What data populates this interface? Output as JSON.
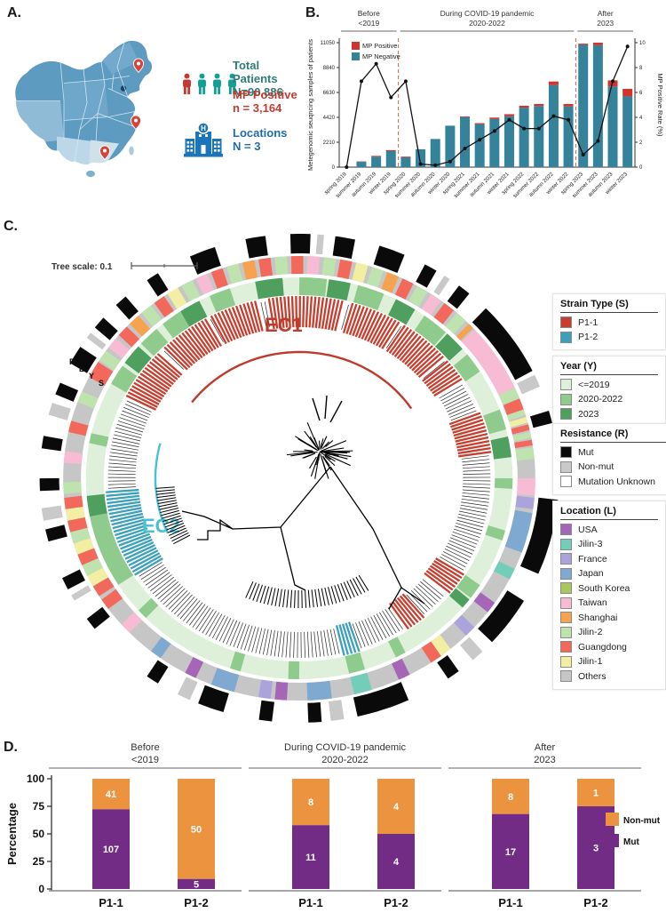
{
  "panels": {
    "a_label": "A.",
    "b_label": "B.",
    "c_label": "C.",
    "d_label": "D."
  },
  "panel_a": {
    "stats": [
      {
        "label": "Total Patients",
        "value": "N=90,886",
        "color": "#2E7D78"
      },
      {
        "label": "MP Positive",
        "value": "n = 3,164",
        "color": "#C13B30"
      },
      {
        "label": "Locations",
        "value": "N = 3",
        "color": "#1F6CA8"
      }
    ],
    "people_icon_colors": [
      "#C13B30",
      "#149E95",
      "#149E95",
      "#149E95"
    ],
    "pin_color": "#D6453A",
    "hospital_color": "#1B75BB"
  },
  "chart_data": [
    {
      "id": "panel_b",
      "type": "bar+line",
      "x": [
        "spring 2019",
        "summer 2019",
        "autumn 2019",
        "winter 2019",
        "spring 2020",
        "summer 2020",
        "autumn 2020",
        "winter 2020",
        "spring 2021",
        "summer 2021",
        "autumn 2021",
        "winter 2021",
        "spring 2022",
        "summer 2022",
        "autumn 2022",
        "winter 2022",
        "spring 2023",
        "summer 2023",
        "autumn 2023",
        "winter 2023"
      ],
      "series": [
        {
          "name": "MP Positive",
          "color": "#D1342F",
          "values": [
            0,
            35,
            80,
            85,
            65,
            4,
            4,
            17,
            68,
            86,
            128,
            179,
            169,
            174,
            312,
            213,
            110,
            230,
            530,
            670
          ]
        },
        {
          "name": "MP Negative",
          "color": "#35839A",
          "values": [
            0,
            470,
            920,
            1420,
            870,
            1590,
            2500,
            3680,
            4430,
            3820,
            4270,
            4520,
            5280,
            5430,
            7290,
            5390,
            10850,
            10820,
            7170,
            6280
          ]
        }
      ],
      "line": {
        "name": "MP Positive Rate (%)",
        "color": "#111111",
        "values": [
          0,
          6.9,
          8.3,
          5.6,
          6.9,
          0.25,
          0.15,
          0.45,
          1.5,
          2.2,
          2.9,
          3.8,
          3.1,
          3.1,
          4.1,
          3.8,
          1.0,
          2.1,
          6.9,
          9.7
        ]
      },
      "ylabel_left": "Metegenomic seuqncing samples of patients",
      "ylabel_right": "MP Positive Rate (%)",
      "yticks_left": [
        0,
        2210,
        4420,
        6630,
        8840,
        11050
      ],
      "yticks_right": [
        0,
        2,
        4,
        6,
        8,
        10
      ],
      "ylim_left": [
        0,
        11050
      ],
      "ylim_right": [
        0,
        10
      ],
      "sections": [
        {
          "line1": "Before",
          "line2": "<2019",
          "from": 0,
          "to": 3
        },
        {
          "line1": "During COVID-19 pandemic",
          "line2": "2020-2022",
          "from": 4,
          "to": 15
        },
        {
          "line1": "After",
          "line2": "2023",
          "from": 16,
          "to": 19
        }
      ],
      "separator_color": "#E0584D"
    },
    {
      "id": "panel_d",
      "type": "stacked-bar",
      "ylabel": "Percentage",
      "yticks": [
        0,
        25,
        50,
        75,
        100
      ],
      "legend": [
        {
          "label": "Non-mut",
          "color": "#EC9340"
        },
        {
          "label": "Mut",
          "color": "#732C85"
        }
      ],
      "groups": [
        {
          "line1": "Before",
          "line2": "<2019",
          "bars": [
            {
              "x": "P1-1",
              "mut": 107,
              "nonmut": 41
            },
            {
              "x": "P1-2",
              "mut": 5,
              "nonmut": 50
            }
          ]
        },
        {
          "line1": "During COVID-19 pandemic",
          "line2": "2020-2022",
          "bars": [
            {
              "x": "P1-1",
              "mut": 11,
              "nonmut": 8
            },
            {
              "x": "P1-2",
              "mut": 4,
              "nonmut": 4
            }
          ]
        },
        {
          "line1": "After",
          "line2": "2023",
          "bars": [
            {
              "x": "P1-1",
              "mut": 17,
              "nonmut": 8
            },
            {
              "x": "P1-2",
              "mut": 3,
              "nonmut": 1
            }
          ]
        }
      ]
    }
  ],
  "phylo": {
    "tree_scale_label": "Tree scale: 0.1",
    "ring_labels": [
      "R",
      "L",
      "Y",
      "S"
    ],
    "clades": [
      {
        "text": "EC1",
        "color": "#C0392B"
      },
      {
        "text": "EC2",
        "color": "#4BBFD6"
      }
    ],
    "palette": {
      "P1-1": "#C73E2E",
      "P1-2": "#3BA0BC",
      "<=2019": "#DFF0DA",
      "2020-2022": "#8FCB8D",
      "2023": "#4F9F5E",
      "Mut": "#0A0A0A",
      "Non-mut": "#C9C9C9",
      "Mutation Unknown": "#FFFFFF",
      "USA": "#A566B8",
      "Jilin-3": "#72CDB9",
      "France": "#ABA3DB",
      "Japan": "#7FA9D1",
      "South Korea": "#A9C85B",
      "Taiwan": "#F7BCD4",
      "Shanghai": "#F6A24E",
      "Jilin-2": "#BFE3AE",
      "Guangdong": "#F2695C",
      "Jilin-1": "#F2EFA2",
      "Others": "#C6C6C6"
    },
    "legends": [
      {
        "title": "Strain Type (S)",
        "items": [
          "P1-1",
          "P1-2"
        ]
      },
      {
        "title": "Year (Y)",
        "items": [
          "<=2019",
          "2020-2022",
          "2023"
        ]
      },
      {
        "title": "Resistance (R)",
        "items": [
          "Mut",
          "Non-mut",
          "Mutation Unknown"
        ]
      },
      {
        "title": "Location (L)",
        "items": [
          "USA",
          "Jilin-3",
          "France",
          "Japan",
          "South Korea",
          "Taiwan",
          "Shanghai",
          "Jilin-2",
          "Guangdong",
          "Jilin-1",
          "Others"
        ]
      }
    ],
    "rings": {
      "strain_blocks": [
        [
          -63,
          -46,
          "P1-1"
        ],
        [
          -44,
          -29,
          "P1-1"
        ],
        [
          -27,
          -13,
          "P1-1"
        ],
        [
          -9,
          14,
          "P1-1"
        ],
        [
          16,
          31,
          "P1-1"
        ],
        [
          33,
          48,
          "P1-1"
        ],
        [
          50,
          58,
          "P1-1"
        ],
        [
          69,
          82,
          "P1-1"
        ],
        [
          122,
          130,
          "P1-1"
        ],
        [
          140,
          146,
          "P1-1"
        ],
        [
          162,
          167,
          "P1-2"
        ],
        [
          238,
          266,
          "P1-2"
        ]
      ],
      "year_base": "<=2019",
      "year_overlays": [
        [
          -62,
          -55,
          "2020-2022"
        ],
        [
          -55,
          -48,
          "2023"
        ],
        [
          -48,
          -42,
          "2020-2022"
        ],
        [
          -40,
          -34,
          "2020-2022"
        ],
        [
          -34,
          -27,
          "2023"
        ],
        [
          -25,
          -18,
          "2020-2022"
        ],
        [
          -12,
          -4,
          "2023"
        ],
        [
          0,
          8,
          "2020-2022"
        ],
        [
          8,
          14,
          "2023"
        ],
        [
          16,
          24,
          "2020-2022"
        ],
        [
          27,
          33,
          "2023"
        ],
        [
          36,
          44,
          "2020-2022"
        ],
        [
          44,
          50,
          "2023"
        ],
        [
          52,
          58,
          "2020-2022"
        ],
        [
          70,
          76,
          "2020-2022"
        ],
        [
          78,
          84,
          "2023"
        ],
        [
          90,
          94,
          "2020-2022"
        ],
        [
          105,
          109,
          "2020-2022"
        ],
        [
          122,
          127,
          "2020-2022"
        ],
        [
          127,
          131,
          "2023"
        ],
        [
          150,
          154,
          "2020-2022"
        ],
        [
          162,
          167,
          "2020-2022"
        ],
        [
          180,
          184,
          "2020-2022"
        ],
        [
          196,
          200,
          "2020-2022"
        ],
        [
          226,
          230,
          "2020-2022"
        ],
        [
          238,
          259,
          "2020-2022"
        ],
        [
          259,
          266,
          "2023"
        ],
        [
          280,
          284,
          "2020-2022"
        ]
      ],
      "location_base": "Others",
      "location_overlays": [
        [
          -63,
          -58,
          "Guangdong"
        ],
        [
          -58,
          -54,
          "Jilin-2"
        ],
        [
          -54,
          -50,
          "Taiwan"
        ],
        [
          -50,
          -46,
          "Guangdong"
        ],
        [
          -46,
          -42,
          "Shanghai"
        ],
        [
          -42,
          -38,
          "Jilin-2"
        ],
        [
          -38,
          -34,
          "Guangdong"
        ],
        [
          -34,
          -30,
          "Jilin-1"
        ],
        [
          -30,
          -26,
          "Jilin-2"
        ],
        [
          -26,
          -22,
          "Taiwan"
        ],
        [
          -22,
          -18,
          "Guangdong"
        ],
        [
          -18,
          -14,
          "Jilin-2"
        ],
        [
          -14,
          -10,
          "Shanghai"
        ],
        [
          -10,
          -6,
          "Guangdong"
        ],
        [
          -6,
          -2,
          "Jilin-2"
        ],
        [
          -2,
          2,
          "Guangdong"
        ],
        [
          2,
          6,
          "Taiwan"
        ],
        [
          6,
          10,
          "Jilin-2"
        ],
        [
          10,
          14,
          "Guangdong"
        ],
        [
          14,
          18,
          "Jilin-1"
        ],
        [
          18,
          22,
          "Jilin-2"
        ],
        [
          22,
          26,
          "Shanghai"
        ],
        [
          26,
          30,
          "Guangdong"
        ],
        [
          30,
          34,
          "Jilin-2"
        ],
        [
          34,
          38,
          "Taiwan"
        ],
        [
          38,
          42,
          "Guangdong"
        ],
        [
          42,
          46,
          "Jilin-2"
        ],
        [
          46,
          48,
          "Shanghai"
        ],
        [
          48,
          66,
          "Taiwan"
        ],
        [
          66,
          69,
          "Jilin-2"
        ],
        [
          69,
          72,
          "Guangdong"
        ],
        [
          72,
          74,
          "Jilin-2"
        ],
        [
          74,
          76,
          "Jilin-1"
        ],
        [
          76,
          78,
          "Guangdong"
        ],
        [
          78,
          80,
          "Jilin-2"
        ],
        [
          80,
          82,
          "Guangdong"
        ],
        [
          82,
          86,
          "Jilin-2"
        ],
        [
          90,
          95,
          "Taiwan"
        ],
        [
          95,
          99,
          "France"
        ],
        [
          99,
          110,
          "Japan"
        ],
        [
          114,
          118,
          "Jilin-3"
        ],
        [
          124,
          128,
          "USA"
        ],
        [
          132,
          136,
          "France"
        ],
        [
          140,
          143,
          "Jilin-1"
        ],
        [
          143,
          146,
          "Guangdong"
        ],
        [
          152,
          156,
          "USA"
        ],
        [
          162,
          167,
          "Jilin-3"
        ],
        [
          172,
          178,
          "Japan"
        ],
        [
          183,
          187,
          "USA"
        ],
        [
          187,
          191,
          "France"
        ],
        [
          196,
          202,
          "Japan"
        ],
        [
          206,
          210,
          "USA"
        ],
        [
          216,
          220,
          "Japan"
        ],
        [
          226,
          230,
          "Taiwan"
        ],
        [
          234,
          238,
          "Guangdong"
        ],
        [
          238,
          241,
          "Guangdong"
        ],
        [
          241,
          244,
          "Jilin-1"
        ],
        [
          244,
          247,
          "Jilin-2"
        ],
        [
          247,
          250,
          "Guangdong"
        ],
        [
          250,
          253,
          "Jilin-1"
        ],
        [
          253,
          256,
          "Jilin-2"
        ],
        [
          256,
          259,
          "Guangdong"
        ],
        [
          259,
          262,
          "Jilin-1"
        ],
        [
          262,
          266,
          "Guangdong"
        ],
        [
          266,
          270,
          "Jilin-2"
        ],
        [
          274,
          278,
          "Taiwan"
        ],
        [
          282,
          286,
          "Guangdong"
        ],
        [
          290,
          294,
          "Jilin-2"
        ]
      ],
      "resistance_overlays": [
        [
          -62,
          -57,
          "Mut"
        ],
        [
          -55,
          -53,
          "Non-mut"
        ],
        [
          -52,
          -49,
          "Mut"
        ],
        [
          -45,
          -42,
          "Mut"
        ],
        [
          -36,
          -32,
          "Mut"
        ],
        [
          -25,
          -19,
          "Mut"
        ],
        [
          -12,
          -7,
          "Mut"
        ],
        [
          -2,
          3,
          "Mut"
        ],
        [
          4,
          6,
          "Non-mut"
        ],
        [
          8,
          13,
          "Mut"
        ],
        [
          18,
          24,
          "Mut"
        ],
        [
          29,
          33,
          "Mut"
        ],
        [
          34,
          36,
          "Non-mut"
        ],
        [
          38,
          41,
          "Mut"
        ],
        [
          46,
          64,
          "Mut"
        ],
        [
          65,
          68,
          "Non-mut"
        ],
        [
          74,
          78,
          "Mut"
        ],
        [
          95,
          114,
          "Mut"
        ],
        [
          120,
          133,
          "Mut"
        ],
        [
          135,
          138,
          "Non-mut"
        ],
        [
          142,
          145,
          "Mut"
        ],
        [
          155,
          168,
          "Mut"
        ],
        [
          170,
          173,
          "Non-mut"
        ],
        [
          175,
          178,
          "Mut"
        ],
        [
          186,
          189,
          "Mut"
        ],
        [
          197,
          204,
          "Mut"
        ],
        [
          205,
          208,
          "Non-mut"
        ],
        [
          213,
          217,
          "Mut"
        ],
        [
          232,
          235,
          "Mut"
        ],
        [
          240,
          242,
          "Non-mut"
        ],
        [
          243,
          247,
          "Mut"
        ],
        [
          255,
          258,
          "Mut"
        ],
        [
          260,
          263,
          "Non-mut"
        ],
        [
          267,
          270,
          "Mut"
        ],
        [
          277,
          280,
          "Mut"
        ],
        [
          285,
          288,
          "Non-mut"
        ],
        [
          290,
          293,
          "Mut"
        ]
      ]
    }
  }
}
